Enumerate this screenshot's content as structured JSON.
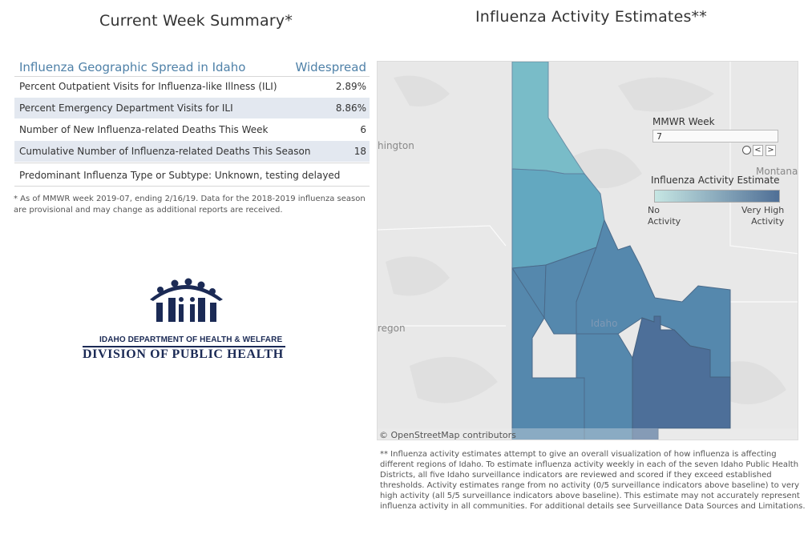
{
  "left": {
    "title": "Current Week Summary*",
    "spread_label": "Influenza Geographic Spread in Idaho",
    "spread_value": "Widespread",
    "rows": [
      {
        "label": "Percent Outpatient Visits for Influenza-like Illness (ILI)",
        "value": "2.89%"
      },
      {
        "label": "Percent Emergency Department Visits for ILI",
        "value": "8.86%"
      },
      {
        "label": "Number of New Influenza-related Deaths This Week",
        "value": "6"
      },
      {
        "label": "Cumulative Number of Influenza-related Deaths This Season",
        "value": "18"
      }
    ],
    "predominant": "Predominant Influenza Type or Subtype: Unknown, testing delayed",
    "footnote": "* As of MMWR week 2019-07, ending 2/16/19. Data for the 2018-2019 influenza season are provisional and may change as additional reports are received.",
    "logo_line1": "IDAHO DEPARTMENT OF HEALTH & WELFARE",
    "logo_line2": "DIVISION OF PUBLIC HEALTH"
  },
  "right": {
    "title": "Influenza Activity Estimates**",
    "map_labels": {
      "washington": "hington",
      "montana": "Montana",
      "oregon": "regon",
      "idaho": "Idaho"
    },
    "attribution": "© OpenStreetMap contributors",
    "mmwr_label": "MMWR Week",
    "mmwr_value": "7",
    "prev_glyph": "<",
    "next_glyph": ">",
    "legend_title": "Influenza Activity Estimate",
    "legend_low_1": "No",
    "legend_low_2": "Activity",
    "legend_high_1": "Very High",
    "legend_high_2": "Activity",
    "footnote": "** Influenza activity estimates attempt to give an overall visualization of how influenza is affecting different regions of Idaho. To estimate influenza activity weekly in each of the seven Idaho Public Health Districts, all five Idaho surveillance indicators are reviewed and scored if they exceed established thresholds. Activity estimates range from no activity (0/5 surveillance indicators above baseline) to very high activity (all 5/5 surveillance indicators above baseline). This estimate may not accurately represent influenza activity in all communities. For additional details see Surveillance Data Sources and Limitations."
  },
  "colors": {
    "district_1": "#79bcc8",
    "district_2": "#63a8c0",
    "district_3_7": "#5588ad",
    "district_6": "#4d6f99",
    "accent": "#4f81a8",
    "logo": "#1b2a55"
  }
}
